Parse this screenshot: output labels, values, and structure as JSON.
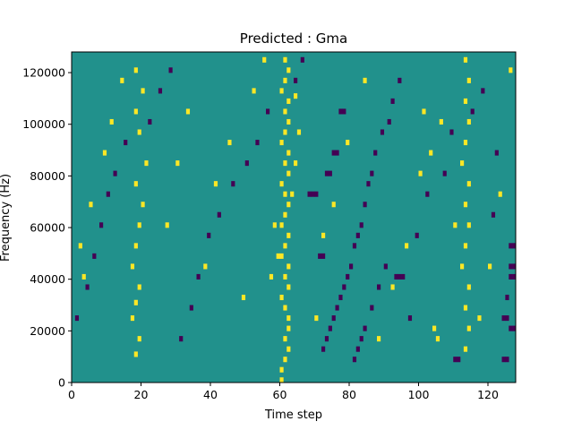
{
  "chart_data": {
    "type": "heatmap",
    "title": "Predicted : Gma",
    "xlabel": "Time step",
    "ylabel": "Frequency (Hz)",
    "xlim": [
      0,
      128
    ],
    "ylim": [
      0,
      128000
    ],
    "x_ticks": [
      0,
      20,
      40,
      60,
      80,
      100,
      120
    ],
    "y_ticks": [
      0,
      20000,
      40000,
      60000,
      80000,
      100000,
      120000
    ],
    "colormap": "viridis",
    "colors": {
      "background": "#21918c",
      "high": "#fde725",
      "low": "#440154"
    },
    "n_time_steps": 128,
    "n_freq_bins": 64,
    "freq_bin_width_hz": 2000,
    "cells_high": [
      [
        60,
        0
      ],
      [
        60,
        2
      ],
      [
        61,
        4
      ],
      [
        62,
        6
      ],
      [
        61,
        8
      ],
      [
        62,
        10
      ],
      [
        62,
        12
      ],
      [
        61,
        14
      ],
      [
        60,
        16
      ],
      [
        62,
        18
      ],
      [
        61,
        20
      ],
      [
        62,
        22
      ],
      [
        60,
        24
      ],
      [
        61,
        26
      ],
      [
        62,
        28
      ],
      [
        60,
        30
      ],
      [
        61,
        32
      ],
      [
        62,
        34
      ],
      [
        61,
        36
      ],
      [
        60,
        38
      ],
      [
        62,
        40
      ],
      [
        61,
        42
      ],
      [
        62,
        44
      ],
      [
        60,
        46
      ],
      [
        61,
        48
      ],
      [
        62,
        50
      ],
      [
        61,
        52
      ],
      [
        62,
        54
      ],
      [
        60,
        56
      ],
      [
        61,
        58
      ],
      [
        62,
        60
      ],
      [
        61,
        62
      ],
      [
        18,
        5
      ],
      [
        19,
        8
      ],
      [
        17,
        12
      ],
      [
        18,
        15
      ],
      [
        19,
        18
      ],
      [
        17,
        22
      ],
      [
        18,
        26
      ],
      [
        19,
        30
      ],
      [
        20,
        34
      ],
      [
        18,
        38
      ],
      [
        21,
        42
      ],
      [
        19,
        48
      ],
      [
        18,
        52
      ],
      [
        20,
        56
      ],
      [
        18,
        60
      ],
      [
        113,
        6
      ],
      [
        114,
        10
      ],
      [
        113,
        14
      ],
      [
        114,
        18
      ],
      [
        112,
        22
      ],
      [
        113,
        26
      ],
      [
        114,
        30
      ],
      [
        113,
        34
      ],
      [
        114,
        38
      ],
      [
        112,
        42
      ],
      [
        113,
        46
      ],
      [
        114,
        50
      ],
      [
        113,
        54
      ],
      [
        114,
        58
      ],
      [
        113,
        62
      ],
      [
        100,
        40
      ],
      [
        101,
        52
      ],
      [
        104,
        10
      ],
      [
        105,
        8
      ],
      [
        57,
        20
      ],
      [
        59,
        24
      ],
      [
        58,
        30
      ],
      [
        63,
        36
      ],
      [
        64,
        42
      ],
      [
        65,
        48
      ],
      [
        64,
        55
      ],
      [
        3,
        20
      ],
      [
        2,
        26
      ],
      [
        5,
        34
      ],
      [
        9,
        44
      ],
      [
        11,
        50
      ],
      [
        14,
        58
      ],
      [
        27,
        30
      ],
      [
        30,
        42
      ],
      [
        33,
        52
      ],
      [
        38,
        22
      ],
      [
        41,
        38
      ],
      [
        45,
        46
      ],
      [
        49,
        16
      ],
      [
        52,
        56
      ],
      [
        55,
        62
      ],
      [
        70,
        12
      ],
      [
        72,
        28
      ],
      [
        75,
        34
      ],
      [
        79,
        46
      ],
      [
        84,
        58
      ],
      [
        88,
        8
      ],
      [
        92,
        18
      ],
      [
        96,
        26
      ],
      [
        103,
        44
      ],
      [
        106,
        50
      ],
      [
        110,
        30
      ],
      [
        117,
        12
      ],
      [
        120,
        22
      ],
      [
        123,
        36
      ],
      [
        126,
        60
      ]
    ],
    "cells_low": [
      [
        93,
        20
      ],
      [
        94,
        20
      ],
      [
        95,
        20
      ],
      [
        110,
        4
      ],
      [
        111,
        4
      ],
      [
        124,
        4
      ],
      [
        125,
        4
      ],
      [
        126,
        10
      ],
      [
        127,
        10
      ],
      [
        124,
        12
      ],
      [
        125,
        12
      ],
      [
        126,
        20
      ],
      [
        127,
        20
      ],
      [
        126,
        22
      ],
      [
        127,
        22
      ],
      [
        126,
        26
      ],
      [
        127,
        26
      ],
      [
        68,
        36
      ],
      [
        69,
        36
      ],
      [
        70,
        36
      ],
      [
        71,
        24
      ],
      [
        72,
        24
      ],
      [
        73,
        40
      ],
      [
        74,
        40
      ],
      [
        75,
        44
      ],
      [
        76,
        44
      ],
      [
        77,
        52
      ],
      [
        78,
        52
      ],
      [
        81,
        4
      ],
      [
        82,
        6
      ],
      [
        83,
        8
      ],
      [
        84,
        10
      ],
      [
        86,
        14
      ],
      [
        88,
        18
      ],
      [
        90,
        22
      ],
      [
        72,
        6
      ],
      [
        73,
        8
      ],
      [
        74,
        10
      ],
      [
        75,
        12
      ],
      [
        76,
        14
      ],
      [
        77,
        16
      ],
      [
        78,
        18
      ],
      [
        79,
        20
      ],
      [
        80,
        22
      ],
      [
        81,
        26
      ],
      [
        82,
        28
      ],
      [
        83,
        30
      ],
      [
        84,
        34
      ],
      [
        85,
        38
      ],
      [
        86,
        40
      ],
      [
        87,
        44
      ],
      [
        89,
        48
      ],
      [
        91,
        50
      ],
      [
        92,
        54
      ],
      [
        94,
        58
      ],
      [
        1,
        12
      ],
      [
        4,
        18
      ],
      [
        6,
        24
      ],
      [
        8,
        30
      ],
      [
        10,
        36
      ],
      [
        12,
        40
      ],
      [
        15,
        46
      ],
      [
        22,
        50
      ],
      [
        25,
        56
      ],
      [
        28,
        60
      ],
      [
        31,
        8
      ],
      [
        34,
        14
      ],
      [
        36,
        20
      ],
      [
        39,
        28
      ],
      [
        42,
        32
      ],
      [
        46,
        38
      ],
      [
        50,
        42
      ],
      [
        53,
        46
      ],
      [
        56,
        52
      ],
      [
        64,
        58
      ],
      [
        66,
        62
      ],
      [
        97,
        12
      ],
      [
        99,
        28
      ],
      [
        102,
        36
      ],
      [
        107,
        40
      ],
      [
        109,
        48
      ],
      [
        115,
        52
      ],
      [
        118,
        56
      ],
      [
        121,
        32
      ],
      [
        122,
        44
      ],
      [
        125,
        16
      ]
    ]
  }
}
